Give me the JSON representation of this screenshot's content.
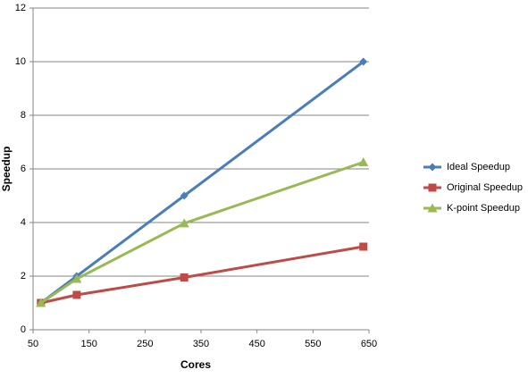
{
  "chart_data": {
    "type": "line",
    "x_label": "Cores",
    "y_label": "Speedup",
    "x": [
      64,
      128,
      320,
      640
    ],
    "series": [
      {
        "name": "Ideal Speedup",
        "color": "#4a7ebb",
        "marker": "diamond",
        "values": [
          1,
          2,
          5,
          10
        ]
      },
      {
        "name": "Original Speedup",
        "color": "#be4b48",
        "marker": "square",
        "values": [
          1,
          1.3,
          1.95,
          3.1
        ]
      },
      {
        "name": "K-point Speedup",
        "color": "#98b954",
        "marker": "triangle",
        "values": [
          1,
          1.9,
          3.97,
          6.25
        ]
      }
    ],
    "xlim": [
      50,
      650
    ],
    "xticks": [
      50,
      150,
      250,
      350,
      450,
      550,
      650
    ],
    "ylim": [
      0,
      12
    ],
    "yticks": [
      0,
      2,
      4,
      6,
      8,
      10,
      12
    ],
    "grid": true,
    "legend": "right"
  }
}
